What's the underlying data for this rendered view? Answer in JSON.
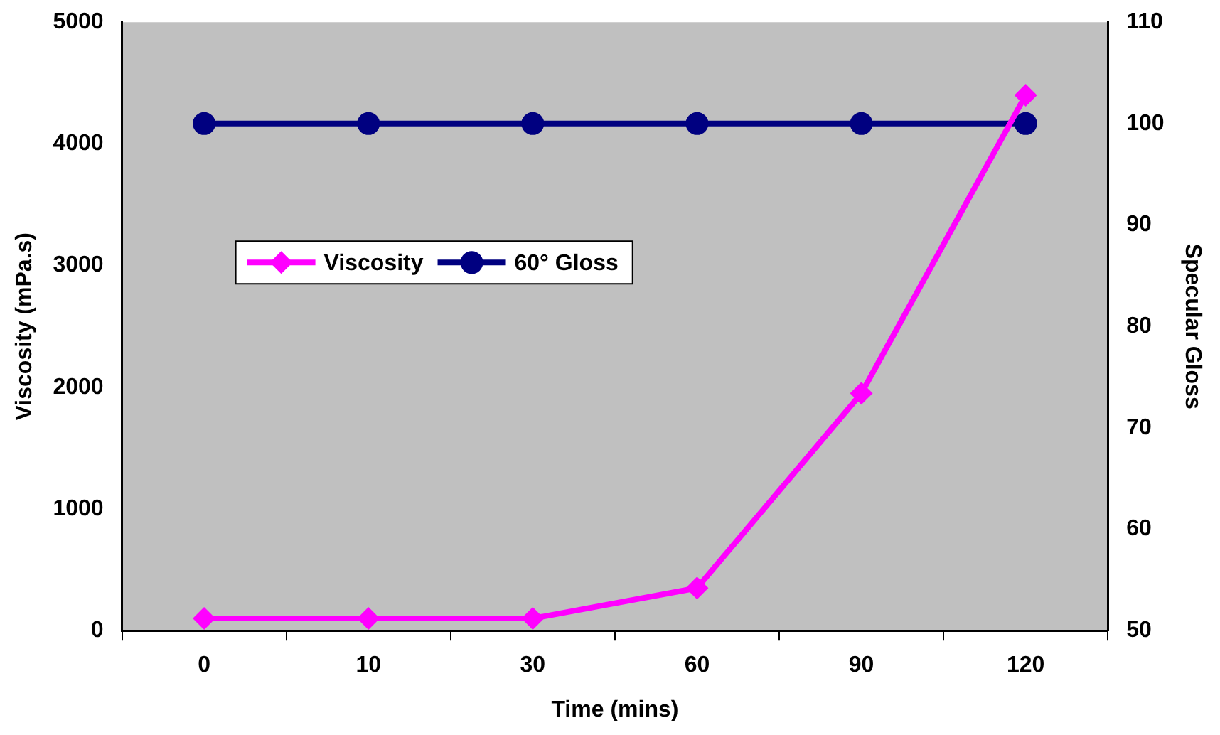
{
  "chart_data": {
    "type": "line",
    "xlabel": "Time (mins)",
    "ylabel": "Viscosity (mPa.s)",
    "y2label": "Specular Gloss",
    "categories": [
      "0",
      "10",
      "30",
      "60",
      "90",
      "120"
    ],
    "series": [
      {
        "name": "Viscosity",
        "color": "#ff00ff",
        "marker": "diamond",
        "values": [
          100,
          100,
          100,
          350,
          1950,
          4400
        ]
      },
      {
        "name": "60° Gloss",
        "color": "#000080",
        "marker": "circle",
        "axis": "y2",
        "values": [
          100,
          100,
          100,
          100,
          100,
          100
        ]
      }
    ],
    "ylim": [
      0,
      5000
    ],
    "yticks": [
      0,
      1000,
      2000,
      3000,
      4000,
      5000
    ],
    "y2lim": [
      50,
      110
    ],
    "y2ticks": [
      50,
      60,
      70,
      80,
      90,
      100,
      110
    ],
    "grid": false,
    "legend": "center left"
  }
}
